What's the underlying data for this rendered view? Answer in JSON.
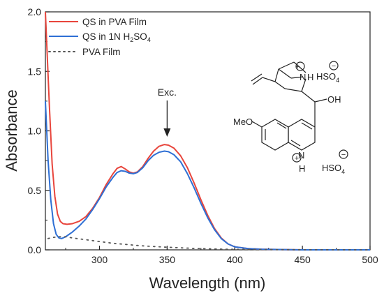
{
  "chart_data": {
    "type": "line",
    "xlabel": "Wavelength (nm)",
    "ylabel": "Absorbance",
    "xlim": [
      260,
      500
    ],
    "ylim": [
      0,
      2.0
    ],
    "xticks": [
      300,
      350,
      400,
      450,
      500
    ],
    "yticks": [
      0.0,
      0.5,
      1.0,
      1.5,
      2.0
    ],
    "grid": false,
    "legend_position": "top-left",
    "series": [
      {
        "name": "QS in PVA Film",
        "color": "#e8453c",
        "style": "solid",
        "points": [
          [
            260,
            2.0
          ],
          [
            263,
            1.2
          ],
          [
            265,
            0.72
          ],
          [
            267,
            0.45
          ],
          [
            269,
            0.3
          ],
          [
            271,
            0.24
          ],
          [
            273,
            0.22
          ],
          [
            276,
            0.215
          ],
          [
            280,
            0.22
          ],
          [
            285,
            0.24
          ],
          [
            290,
            0.28
          ],
          [
            295,
            0.35
          ],
          [
            300,
            0.44
          ],
          [
            305,
            0.55
          ],
          [
            310,
            0.64
          ],
          [
            313,
            0.685
          ],
          [
            316,
            0.7
          ],
          [
            319,
            0.68
          ],
          [
            322,
            0.655
          ],
          [
            325,
            0.645
          ],
          [
            328,
            0.655
          ],
          [
            332,
            0.7
          ],
          [
            336,
            0.77
          ],
          [
            340,
            0.83
          ],
          [
            344,
            0.87
          ],
          [
            348,
            0.885
          ],
          [
            351,
            0.88
          ],
          [
            355,
            0.855
          ],
          [
            360,
            0.79
          ],
          [
            365,
            0.69
          ],
          [
            370,
            0.56
          ],
          [
            375,
            0.42
          ],
          [
            380,
            0.29
          ],
          [
            385,
            0.18
          ],
          [
            390,
            0.1
          ],
          [
            395,
            0.05
          ],
          [
            400,
            0.025
          ],
          [
            410,
            0.01
          ],
          [
            420,
            0.005
          ],
          [
            450,
            0.0
          ],
          [
            500,
            0.0
          ]
        ]
      },
      {
        "name": "QS in 1N H2SO4",
        "color": "#2e6fd4",
        "style": "solid",
        "points": [
          [
            260,
            1.25
          ],
          [
            262,
            0.75
          ],
          [
            264,
            0.42
          ],
          [
            266,
            0.22
          ],
          [
            268,
            0.13
          ],
          [
            270,
            0.1
          ],
          [
            272,
            0.095
          ],
          [
            275,
            0.11
          ],
          [
            280,
            0.15
          ],
          [
            285,
            0.2
          ],
          [
            290,
            0.26
          ],
          [
            295,
            0.34
          ],
          [
            300,
            0.43
          ],
          [
            305,
            0.53
          ],
          [
            310,
            0.61
          ],
          [
            313,
            0.65
          ],
          [
            316,
            0.665
          ],
          [
            319,
            0.66
          ],
          [
            322,
            0.645
          ],
          [
            325,
            0.64
          ],
          [
            328,
            0.65
          ],
          [
            332,
            0.69
          ],
          [
            336,
            0.75
          ],
          [
            340,
            0.795
          ],
          [
            344,
            0.82
          ],
          [
            348,
            0.83
          ],
          [
            351,
            0.825
          ],
          [
            355,
            0.8
          ],
          [
            360,
            0.74
          ],
          [
            365,
            0.64
          ],
          [
            370,
            0.52
          ],
          [
            375,
            0.39
          ],
          [
            380,
            0.27
          ],
          [
            385,
            0.17
          ],
          [
            390,
            0.095
          ],
          [
            395,
            0.05
          ],
          [
            400,
            0.025
          ],
          [
            410,
            0.01
          ],
          [
            420,
            0.005
          ],
          [
            450,
            0.0
          ],
          [
            500,
            0.0
          ]
        ]
      },
      {
        "name": "PVA Film",
        "color": "#555555",
        "style": "dotted",
        "points": [
          [
            262,
            0.095
          ],
          [
            266,
            0.105
          ],
          [
            270,
            0.11
          ],
          [
            275,
            0.11
          ],
          [
            280,
            0.1
          ],
          [
            290,
            0.085
          ],
          [
            300,
            0.07
          ],
          [
            310,
            0.055
          ],
          [
            320,
            0.045
          ],
          [
            330,
            0.035
          ],
          [
            340,
            0.028
          ],
          [
            350,
            0.022
          ],
          [
            360,
            0.017
          ],
          [
            370,
            0.012
          ],
          [
            380,
            0.009
          ],
          [
            390,
            0.006
          ],
          [
            400,
            0.004
          ],
          [
            420,
            0.002
          ],
          [
            450,
            0.001
          ],
          [
            500,
            0.0
          ]
        ]
      }
    ],
    "legend": [
      {
        "label": "QS in PVA Film",
        "color": "#e8453c",
        "style": "solid"
      },
      {
        "label": "QS in 1N H",
        "sub": "2",
        "label_mid": "SO",
        "sub2": "4",
        "color": "#2e6fd4",
        "style": "solid"
      },
      {
        "label": "PVA Film",
        "color": "#555555",
        "style": "dotted"
      }
    ],
    "annotations": {
      "excitation": {
        "text": "Exc.",
        "x": 350,
        "y_text": 1.26
      }
    },
    "molecule": {
      "upper_anion": "HSO",
      "upper_anion_sub": "4",
      "lower_anion": "HSO",
      "lower_anion_sub": "4",
      "methoxy": "MeO",
      "hydroxyl": "OH",
      "nitrogen": "N",
      "hydrogen": "H",
      "plus": "+",
      "minus": "−"
    }
  }
}
